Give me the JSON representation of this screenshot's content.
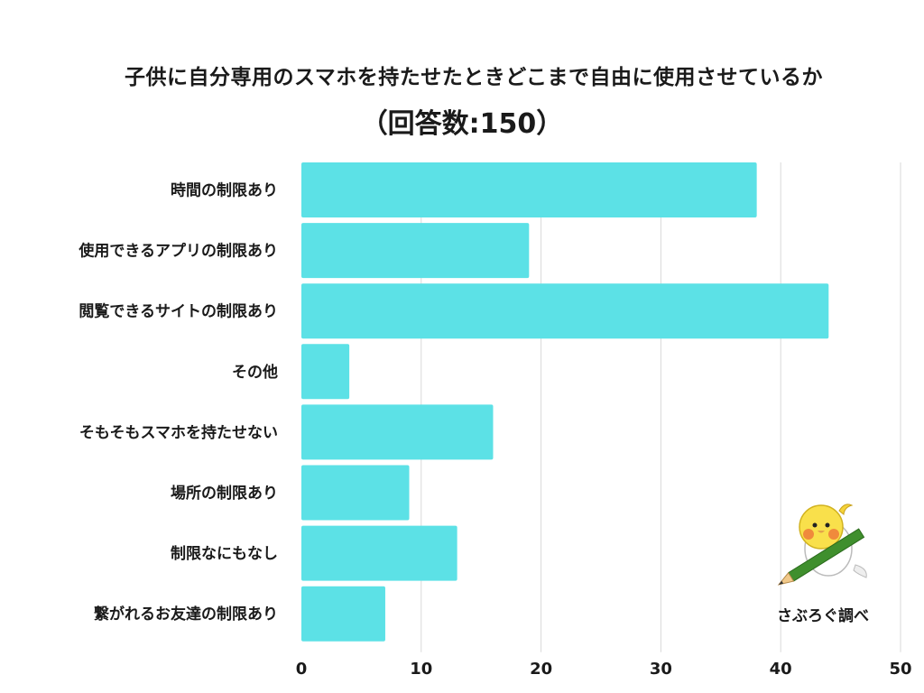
{
  "chart_data": {
    "type": "bar",
    "orientation": "horizontal",
    "title": "子供に自分専用のスマホを持たせたときどこまで自由に使用させているか",
    "subtitle": "（回答数:150）",
    "categories": [
      "時間の制限あり",
      "使用できるアプリの制限あり",
      "閲覧できるサイトの制限あり",
      "その他",
      "そもそもスマホを持たせない",
      "場所の制限あり",
      "制限なにもなし",
      "繋がれるお友達の制限あり"
    ],
    "values": [
      38,
      19,
      44,
      4,
      16,
      9,
      13,
      7
    ],
    "xlim": [
      0,
      50
    ],
    "xticks": [
      0,
      10,
      20,
      30,
      40,
      50
    ],
    "xlabel": "",
    "ylabel": "",
    "grid": true,
    "bar_color": "#5ce1e6",
    "grid_color": "#d9d9d9"
  },
  "branding": {
    "credit": "さぶろぐ調べ",
    "mascot_icon": "bird-with-pencil-icon"
  }
}
